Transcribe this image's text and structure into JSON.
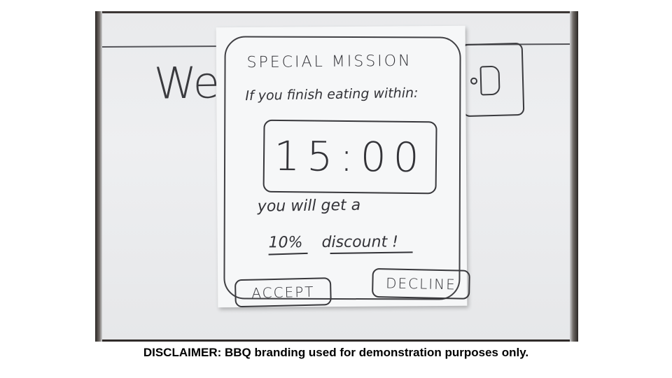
{
  "background_board": {
    "partial_word": "We"
  },
  "dialog": {
    "title": "SPECIAL MISSION",
    "condition": "If you finish eating within:",
    "timer": "15:00",
    "reward_line1": "you will get a",
    "reward_amount": "10%",
    "reward_rest": "discount !",
    "accept_label": "ACCEPT",
    "decline_label": "DECLINE"
  },
  "disclaimer": "DISCLAIMER: BBQ branding used for demonstration purposes only."
}
